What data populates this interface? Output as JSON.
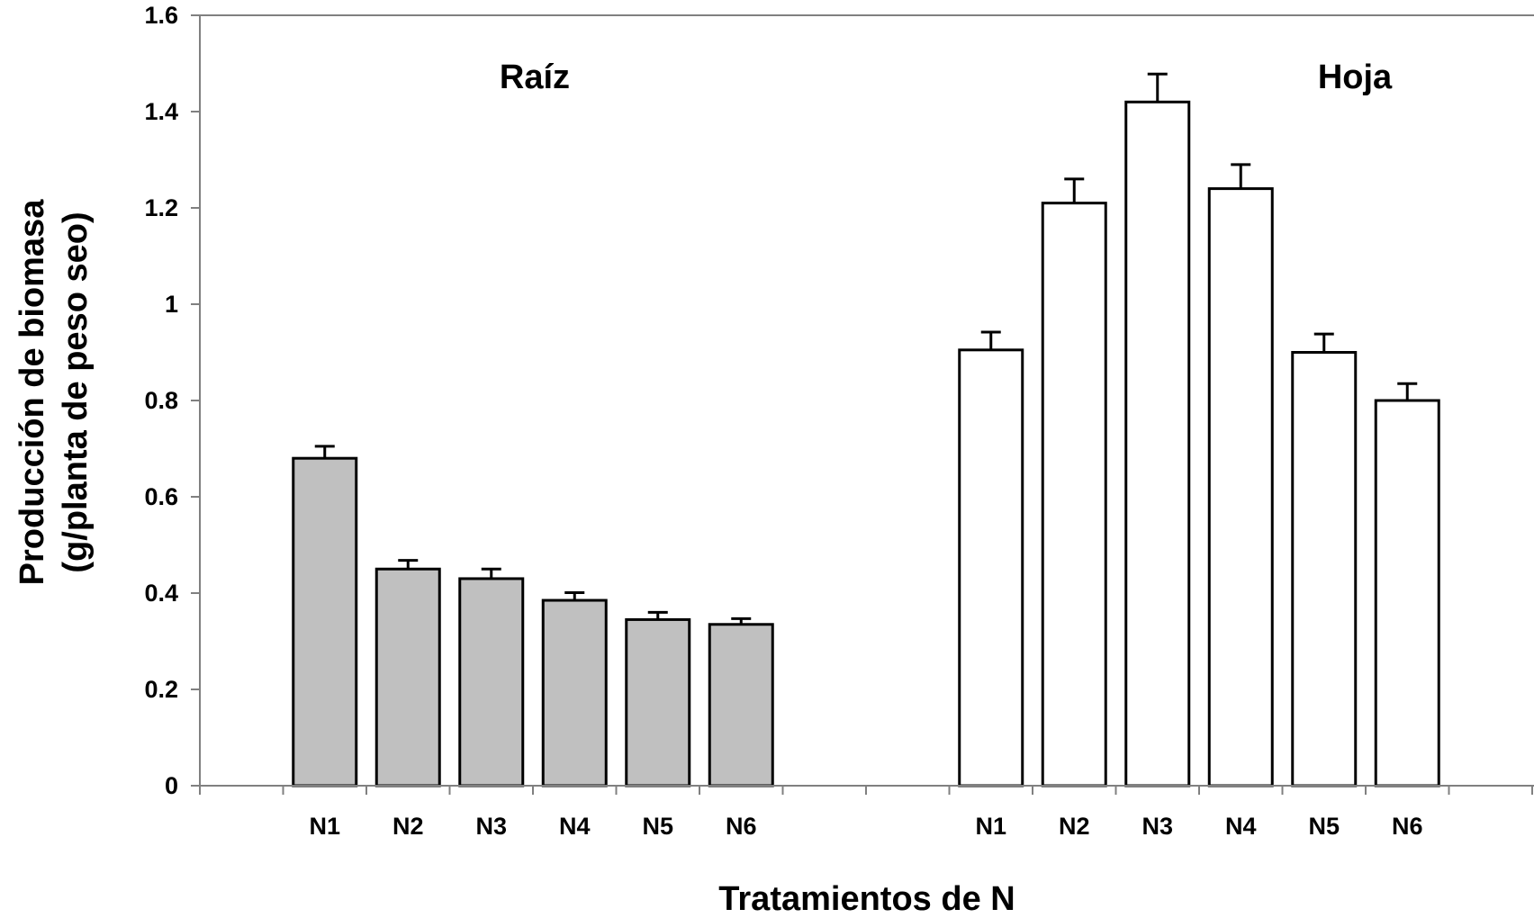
{
  "chart_data": {
    "type": "bar",
    "xlabel": "Tratamientos de N",
    "ylabel_lines": [
      "Producción de biomasa",
      "(g/planta de peso seo)"
    ],
    "ylim": [
      0,
      1.6
    ],
    "yticks": [
      "0",
      "0.2",
      "0.4",
      "0.6",
      "0.8",
      "1",
      "1.2",
      "1.4",
      "1.6"
    ],
    "grid": false,
    "colors": {
      "raiz_fill": "#c0c0c0",
      "hoja_fill": "#ffffff",
      "stroke": "#000000",
      "axis": "#808080"
    },
    "groups": [
      {
        "name": "Raíz",
        "categories": [
          "N1",
          "N2",
          "N3",
          "N4",
          "N5",
          "N6"
        ],
        "values": [
          0.68,
          0.45,
          0.43,
          0.385,
          0.345,
          0.335
        ],
        "errors": [
          0.025,
          0.018,
          0.02,
          0.016,
          0.015,
          0.012
        ]
      },
      {
        "name": "Hoja",
        "categories": [
          "N1",
          "N2",
          "N3",
          "N4",
          "N5",
          "N6"
        ],
        "values": [
          0.905,
          1.21,
          1.42,
          1.24,
          0.9,
          0.8
        ],
        "errors": [
          0.037,
          0.05,
          0.058,
          0.05,
          0.038,
          0.035
        ]
      }
    ]
  }
}
